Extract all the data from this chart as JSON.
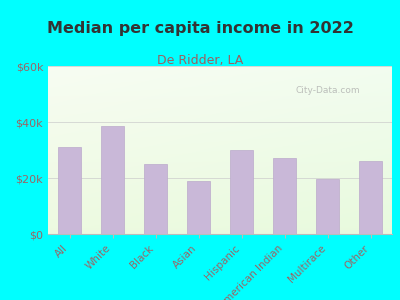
{
  "title": "Median per capita income in 2022",
  "subtitle": "De Ridder, LA",
  "categories": [
    "All",
    "White",
    "Black",
    "Asian",
    "Hispanic",
    "American Indian",
    "Multirace",
    "Other"
  ],
  "values": [
    31000,
    38500,
    25000,
    19000,
    30000,
    27000,
    19500,
    26000
  ],
  "bar_color": "#c9b8d8",
  "bar_edge_color": "#bbaacb",
  "background_color": "#00ffff",
  "title_color": "#333333",
  "subtitle_color": "#9b6060",
  "tick_color": "#996666",
  "ylim": [
    0,
    60000
  ],
  "yticks": [
    0,
    20000,
    40000,
    60000
  ],
  "ytick_labels": [
    "$0",
    "$20k",
    "$40k",
    "$60k"
  ],
  "watermark": "City-Data.com",
  "figsize": [
    4.0,
    3.0
  ],
  "dpi": 100
}
